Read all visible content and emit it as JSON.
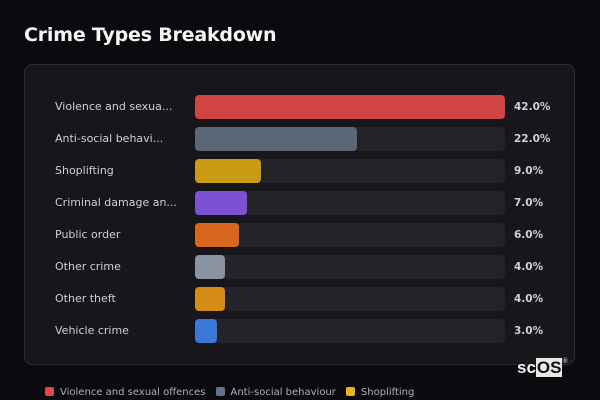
{
  "title": "Crime Types Breakdown",
  "chart_data": {
    "type": "bar",
    "orientation": "horizontal",
    "title": "Crime Types Breakdown",
    "categories": [
      "Violence and sexual offences",
      "Anti-social behaviour",
      "Shoplifting",
      "Criminal damage and arson",
      "Public order",
      "Other crime",
      "Other theft",
      "Vehicle crime"
    ],
    "display_labels": [
      "Violence and sexua...",
      "Anti-social behavi...",
      "Shoplifting",
      "Criminal damage an...",
      "Public order",
      "Other crime",
      "Other theft",
      "Vehicle crime"
    ],
    "values": [
      42.0,
      22.0,
      9.0,
      7.0,
      6.0,
      4.0,
      4.0,
      3.0
    ],
    "value_labels": [
      "42.0%",
      "22.0%",
      "9.0%",
      "7.0%",
      "6.0%",
      "4.0%",
      "4.0%",
      "3.0%"
    ],
    "colors": [
      "#d04444",
      "#5b6677",
      "#c99a14",
      "#7b52d3",
      "#d9661f",
      "#8a93a2",
      "#d58b14",
      "#3a77d6"
    ],
    "xmax": 42.0,
    "unit": "%",
    "grid": false,
    "legend": {
      "position": "bottom",
      "entries": [
        {
          "label": "Violence and sexual offences",
          "color": "#e04848"
        },
        {
          "label": "Anti-social behaviour",
          "color": "#64718a"
        },
        {
          "label": "Shoplifting",
          "color": "#e6b422"
        }
      ]
    }
  },
  "watermark": {
    "left": "sc",
    "right": "OS",
    "mark": "®"
  }
}
